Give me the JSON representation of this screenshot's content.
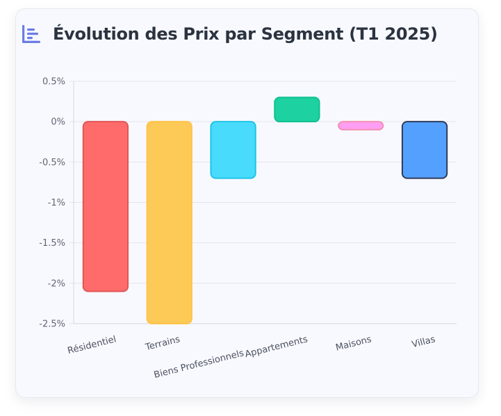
{
  "header": {
    "title": "Évolution des Prix par Segment (T1 2025)",
    "icon": "bar-chart-icon"
  },
  "colors": {
    "card_background": "#f8f9fe",
    "title": "#2b3340",
    "icon": "#6c7ce6",
    "grid": "#e2e5ec"
  },
  "chart_data": {
    "type": "bar",
    "title": "Évolution des Prix par Segment (T1 2025)",
    "xlabel": "",
    "ylabel": "",
    "categories": [
      "Résidentiel",
      "Terrains",
      "Biens Professionnels",
      "Appartements",
      "Maisons",
      "Villas"
    ],
    "values": [
      -2.1,
      -2.5,
      -0.7,
      0.3,
      -0.1,
      -0.7
    ],
    "ylim": [
      -2.5,
      0.5
    ],
    "yticks": [
      0.5,
      0,
      -0.5,
      -1,
      -1.5,
      -2,
      -2.5
    ],
    "ytick_labels": [
      "0.5%",
      "0%",
      "-0.5%",
      "-1%",
      "-1.5%",
      "-2%",
      "-2.5%"
    ],
    "bar_fill_colors": [
      "#ff6b6b",
      "#feca57",
      "#48dbfb",
      "#1dd1a1",
      "#ff9ff3",
      "#54a0ff"
    ],
    "bar_border_colors": [
      "#e05555",
      "#fec34a",
      "#1fc3e6",
      "#10c090",
      "#f48fb1",
      "#2e3a59"
    ],
    "grid": true,
    "legend": "none"
  }
}
